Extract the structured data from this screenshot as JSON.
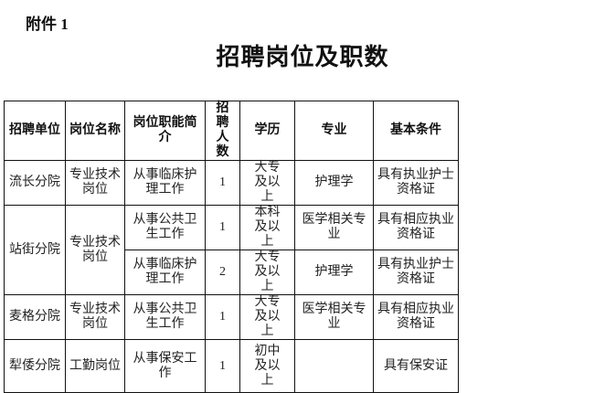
{
  "attachment": "附件 1",
  "title": "招聘岗位及职数",
  "headers": [
    "招聘单位",
    "岗位名称",
    "岗位职能简介",
    "招聘人数",
    "学历",
    "专业",
    "基本条件"
  ],
  "rows": [
    {
      "unit": "流长分院",
      "position": "专业技术岗位",
      "duty": "从事临床护理工作",
      "count": "1",
      "education": "大专及以上",
      "major": "护理学",
      "requirement": "具有执业护士资格证"
    },
    {
      "unit": "站街分院",
      "position": "专业技术岗位",
      "duty": "从事公共卫生工作",
      "count": "1",
      "education": "本科及以上",
      "major": "医学相关专业",
      "requirement": "具有相应执业资格证"
    },
    {
      "duty": "从事临床护理工作",
      "count": "2",
      "education": "大专及以上",
      "major": "护理学",
      "requirement": "具有执业护士资格证"
    },
    {
      "unit": "麦格分院",
      "position": "专业技术岗位",
      "duty": "从事公共卫生工作",
      "count": "1",
      "education": "大专及以上",
      "major": "医学相关专业",
      "requirement": "具有相应执业资格证"
    },
    {
      "unit": "犁倭分院",
      "position": "工勤岗位",
      "duty": "从事保安工作",
      "count": "1",
      "education": "初中及以上",
      "major": "",
      "requirement": "具有保安证"
    }
  ]
}
